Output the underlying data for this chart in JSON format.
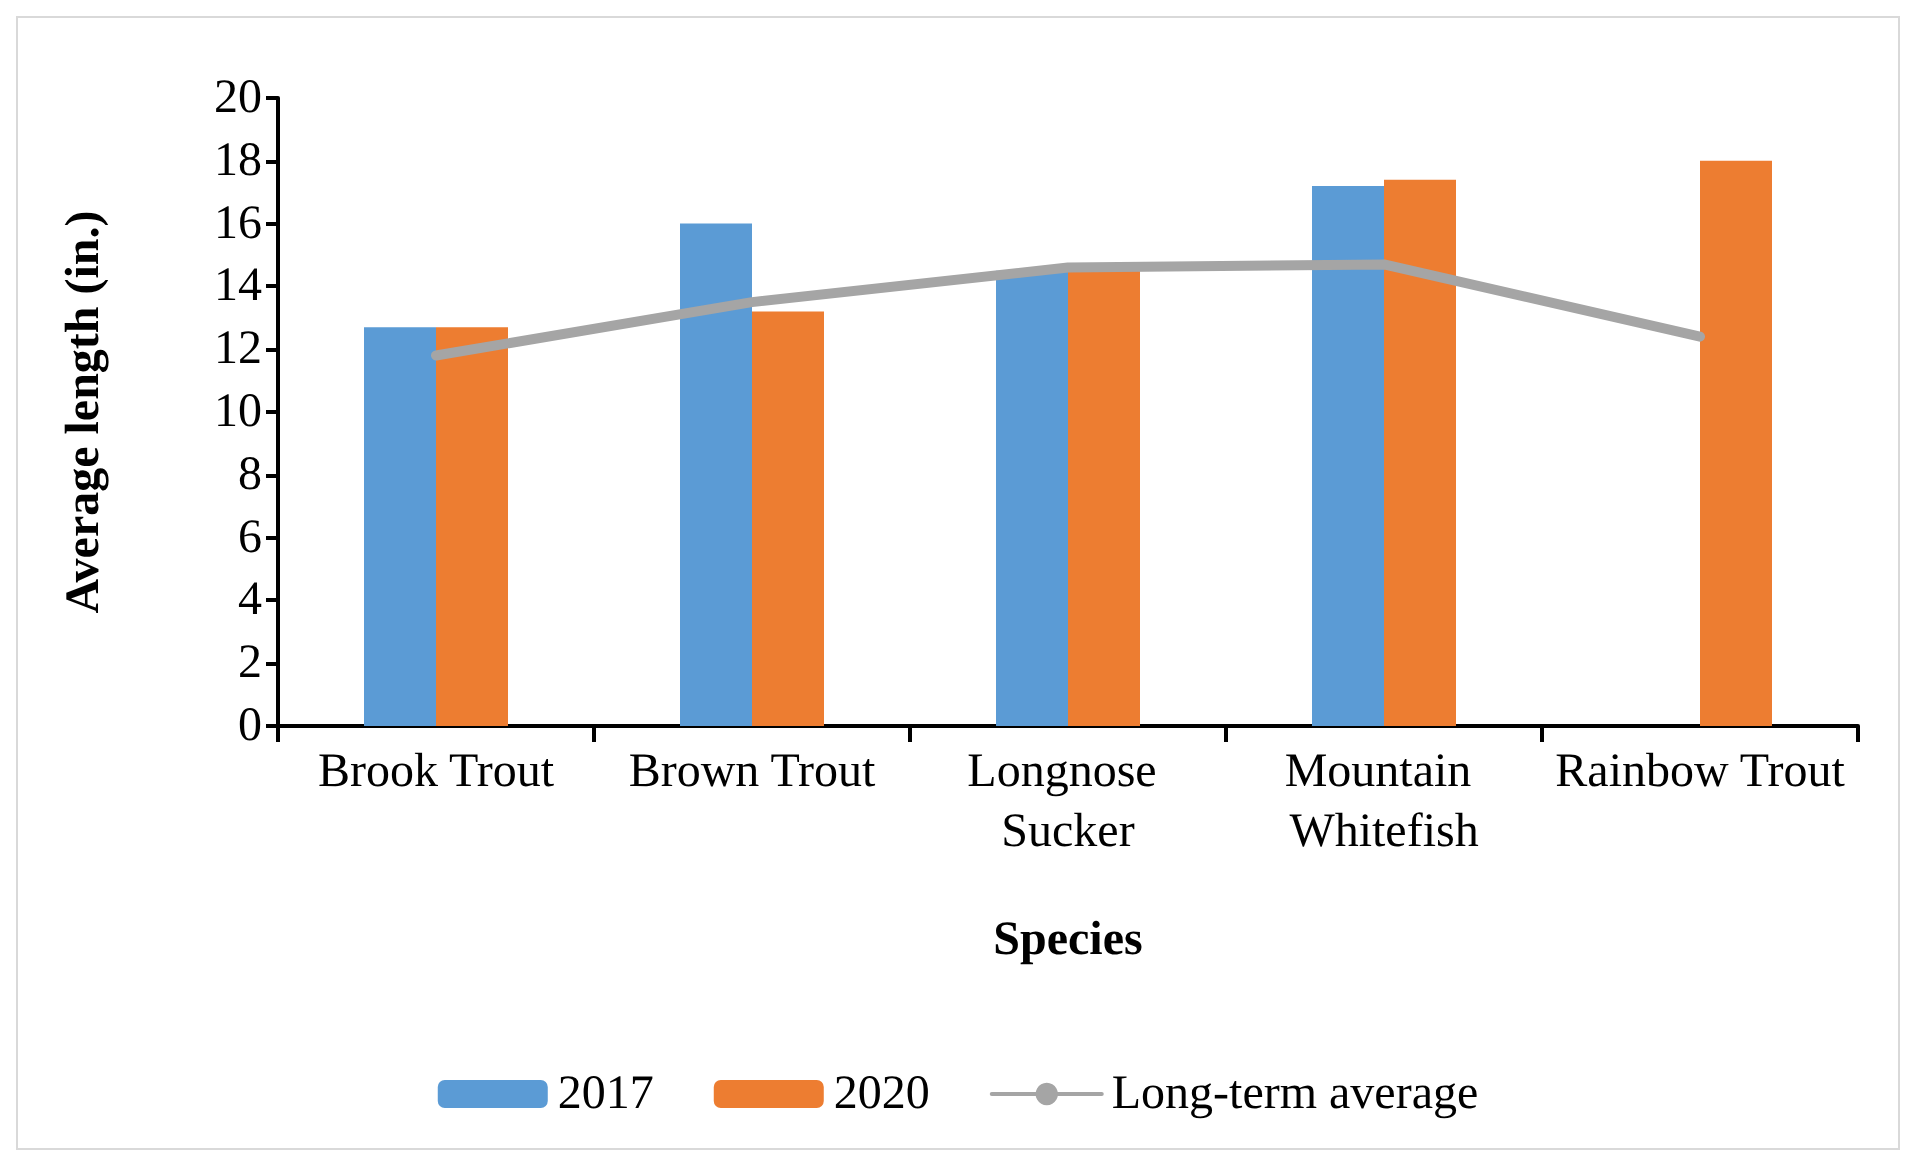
{
  "chart_data": {
    "type": "bar",
    "xlabel": "Species",
    "ylabel": "Average length (in.)",
    "categories": [
      "Brook Trout",
      "Brown Trout",
      "Longnose Sucker",
      "Mountain Whitefish",
      "Rainbow Trout"
    ],
    "series": [
      {
        "name": "2017",
        "color": "#5b9bd5",
        "values": [
          12.7,
          16.0,
          14.5,
          17.2,
          null
        ]
      },
      {
        "name": "2020",
        "color": "#ed7d31",
        "values": [
          12.7,
          13.2,
          14.5,
          17.4,
          18.0
        ]
      },
      {
        "name": "Long-term average",
        "type": "line",
        "color": "#a5a5a5",
        "marker": "none",
        "values": [
          11.8,
          13.5,
          14.6,
          14.7,
          12.4
        ]
      }
    ],
    "ylim": [
      0,
      20
    ],
    "yticks": [
      0,
      2,
      4,
      6,
      8,
      10,
      12,
      14,
      16,
      18,
      20
    ],
    "grid": false,
    "legend": "bottom"
  }
}
